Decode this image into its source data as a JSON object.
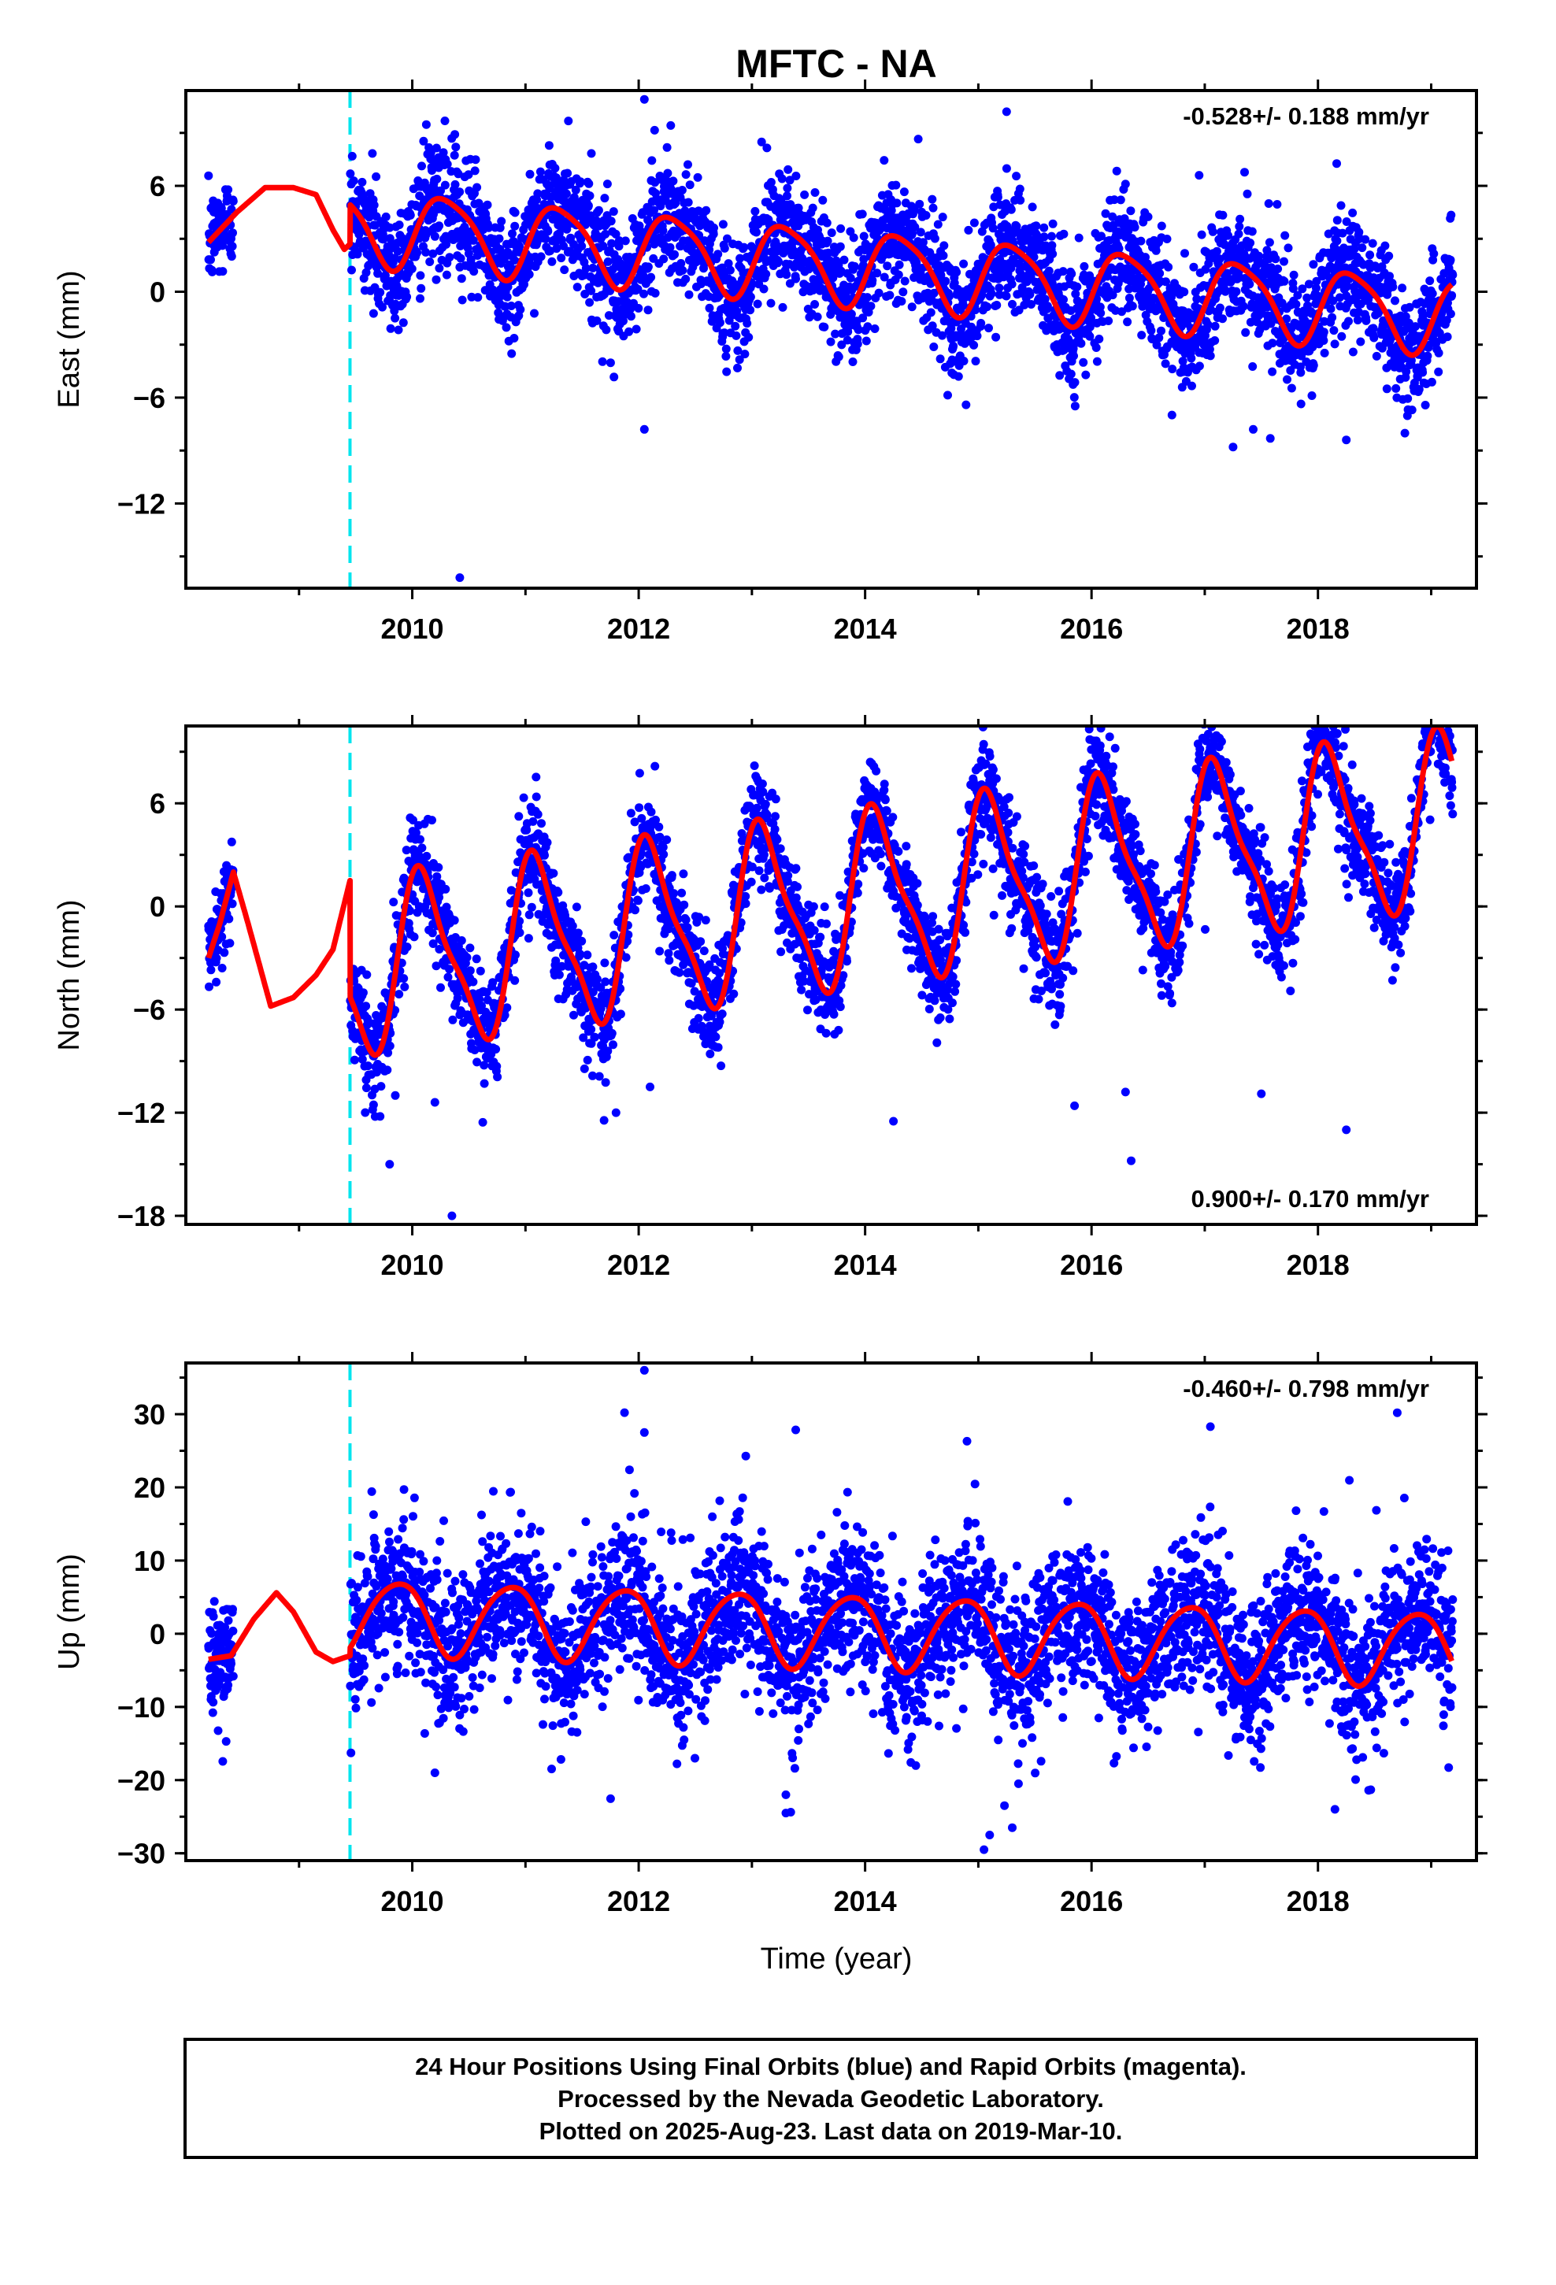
{
  "title": "MFTC - NA",
  "xlabel": "Time (year)",
  "footer": {
    "lines": [
      "24 Hour Positions Using Final Orbits (blue) and Rapid Orbits (magenta).",
      "Processed by the Nevada Geodetic Laboratory.",
      "Plotted on 2025-Aug-23. Last data on 2019-Mar-10."
    ]
  },
  "colors": {
    "points": "#0000ff",
    "model": "#ff0000",
    "event_line": "#00e5ee",
    "frame": "#000000"
  },
  "chart_data": [
    {
      "type": "scatter",
      "ylabel": "East (mm)",
      "rate_text": "-0.528+/- 0.188 mm/yr",
      "rate_position": "top-right",
      "xlim": [
        2008.0,
        2019.4
      ],
      "ylim": [
        -16.8,
        11.4
      ],
      "yticks": [
        6,
        0,
        -6,
        -12
      ],
      "yticklabels": [
        "6",
        "0",
        "−6",
        "−12"
      ],
      "xticks": [
        2010,
        2012,
        2014,
        2016,
        2018
      ],
      "xticklabels": [
        "2010",
        "2012",
        "2014",
        "2016",
        "2018"
      ],
      "event_line_x": 2009.45,
      "data_start": 2008.2,
      "data_end": 2019.19,
      "gap": [
        2008.42,
        2009.45
      ],
      "model": {
        "offset": 1.4,
        "rate": -0.528,
        "ann_amp": 2.1,
        "ann_phase": -0.35,
        "semi_amp": 0.4,
        "semi_phase": 0.2,
        "t0": 2014.0,
        "noise": 1.7
      },
      "gap_model": [
        [
          2008.2,
          2.8
        ],
        [
          2008.45,
          4.5
        ],
        [
          2008.7,
          5.9
        ],
        [
          2008.95,
          5.9
        ],
        [
          2009.15,
          5.5
        ],
        [
          2009.3,
          3.5
        ],
        [
          2009.4,
          2.4
        ],
        [
          2009.45,
          2.7
        ]
      ],
      "outliers": [
        [
          2012.05,
          10.9
        ],
        [
          2015.25,
          10.2
        ],
        [
          2016.95,
          6.6
        ],
        [
          2016.3,
          6.1
        ],
        [
          2010.42,
          -16.2
        ],
        [
          2012.05,
          -7.8
        ],
        [
          2017.25,
          -8.8
        ],
        [
          2018.25,
          -8.4
        ]
      ]
    },
    {
      "type": "scatter",
      "ylabel": "North (mm)",
      "rate_text": "0.900+/- 0.170 mm/yr",
      "rate_position": "bottom-right",
      "xlim": [
        2008.0,
        2019.4
      ],
      "ylim": [
        -18.5,
        10.5
      ],
      "yticks": [
        6,
        0,
        -6,
        -12,
        -18
      ],
      "yticklabels": [
        "6",
        "0",
        "−6",
        "−12",
        "−18"
      ],
      "xticks": [
        2010,
        2012,
        2014,
        2016,
        2018
      ],
      "xticklabels": [
        "2010",
        "2012",
        "2014",
        "2016",
        "2018"
      ],
      "event_line_x": 2009.45,
      "data_start": 2008.2,
      "data_end": 2019.19,
      "gap": [
        2008.42,
        2009.45
      ],
      "model": {
        "offset": 0.4,
        "rate": 0.9,
        "ann_amp": 4.8,
        "ann_phase": 0.9,
        "semi_amp": 1.3,
        "semi_phase": 1.6,
        "t0": 2014.0,
        "noise": 1.5
      },
      "gap_model": [
        [
          2008.2,
          -3.0
        ],
        [
          2008.3,
          -1.0
        ],
        [
          2008.42,
          2.0
        ],
        [
          2008.55,
          -1.0
        ],
        [
          2008.75,
          -5.8
        ],
        [
          2008.95,
          -5.3
        ],
        [
          2009.15,
          -4.0
        ],
        [
          2009.3,
          -2.5
        ],
        [
          2009.45,
          1.5
        ]
      ],
      "outliers": [
        [
          2010.35,
          -18.0
        ],
        [
          2009.8,
          -15.0
        ],
        [
          2016.35,
          -14.8
        ],
        [
          2011.8,
          -12.0
        ],
        [
          2014.25,
          -12.5
        ],
        [
          2015.85,
          -11.6
        ],
        [
          2017.5,
          -10.9
        ],
        [
          2018.25,
          -13.0
        ],
        [
          2016.3,
          -10.8
        ],
        [
          2012.1,
          -10.5
        ],
        [
          2009.85,
          -11.0
        ],
        [
          2010.2,
          -11.4
        ]
      ]
    },
    {
      "type": "scatter",
      "ylabel": "Up (mm)",
      "rate_text": "-0.460+/- 0.798 mm/yr",
      "rate_position": "top-right",
      "xlim": [
        2008.0,
        2019.4
      ],
      "ylim": [
        -31.0,
        37.0
      ],
      "yticks": [
        30,
        20,
        10,
        0,
        -10,
        -20,
        -30
      ],
      "yticklabels": [
        "30",
        "20",
        "10",
        "0",
        "−10",
        "−20",
        "−30"
      ],
      "xticks": [
        2010,
        2012,
        2014,
        2016,
        2018
      ],
      "xticklabels": [
        "2010",
        "2012",
        "2014",
        "2016",
        "2018"
      ],
      "event_line_x": 2009.45,
      "data_start": 2008.2,
      "data_end": 2019.19,
      "gap": [
        2008.42,
        2009.45
      ],
      "model": {
        "offset": 0.4,
        "rate": -0.46,
        "ann_amp": 5.0,
        "ann_phase": 2.4,
        "semi_amp": 0.6,
        "semi_phase": 0.5,
        "t0": 2014.0,
        "noise": 5.2
      },
      "gap_model": [
        [
          2008.2,
          -3.5
        ],
        [
          2008.4,
          -3.0
        ],
        [
          2008.6,
          2.0
        ],
        [
          2008.8,
          5.6
        ],
        [
          2008.95,
          3.0
        ],
        [
          2009.15,
          -2.5
        ],
        [
          2009.3,
          -3.8
        ],
        [
          2009.45,
          -3.0
        ]
      ],
      "outliers": [
        [
          2012.05,
          36.0
        ],
        [
          2012.05,
          27.5
        ],
        [
          2018.7,
          30.2
        ],
        [
          2017.05,
          28.3
        ],
        [
          2014.9,
          26.3
        ],
        [
          2015.05,
          -29.5
        ],
        [
          2013.3,
          -24.5
        ],
        [
          2018.15,
          -24.0
        ],
        [
          2015.1,
          -27.5
        ],
        [
          2015.3,
          -26.5
        ],
        [
          2013.3,
          -22.0
        ],
        [
          2010.2,
          -19.0
        ]
      ]
    }
  ]
}
